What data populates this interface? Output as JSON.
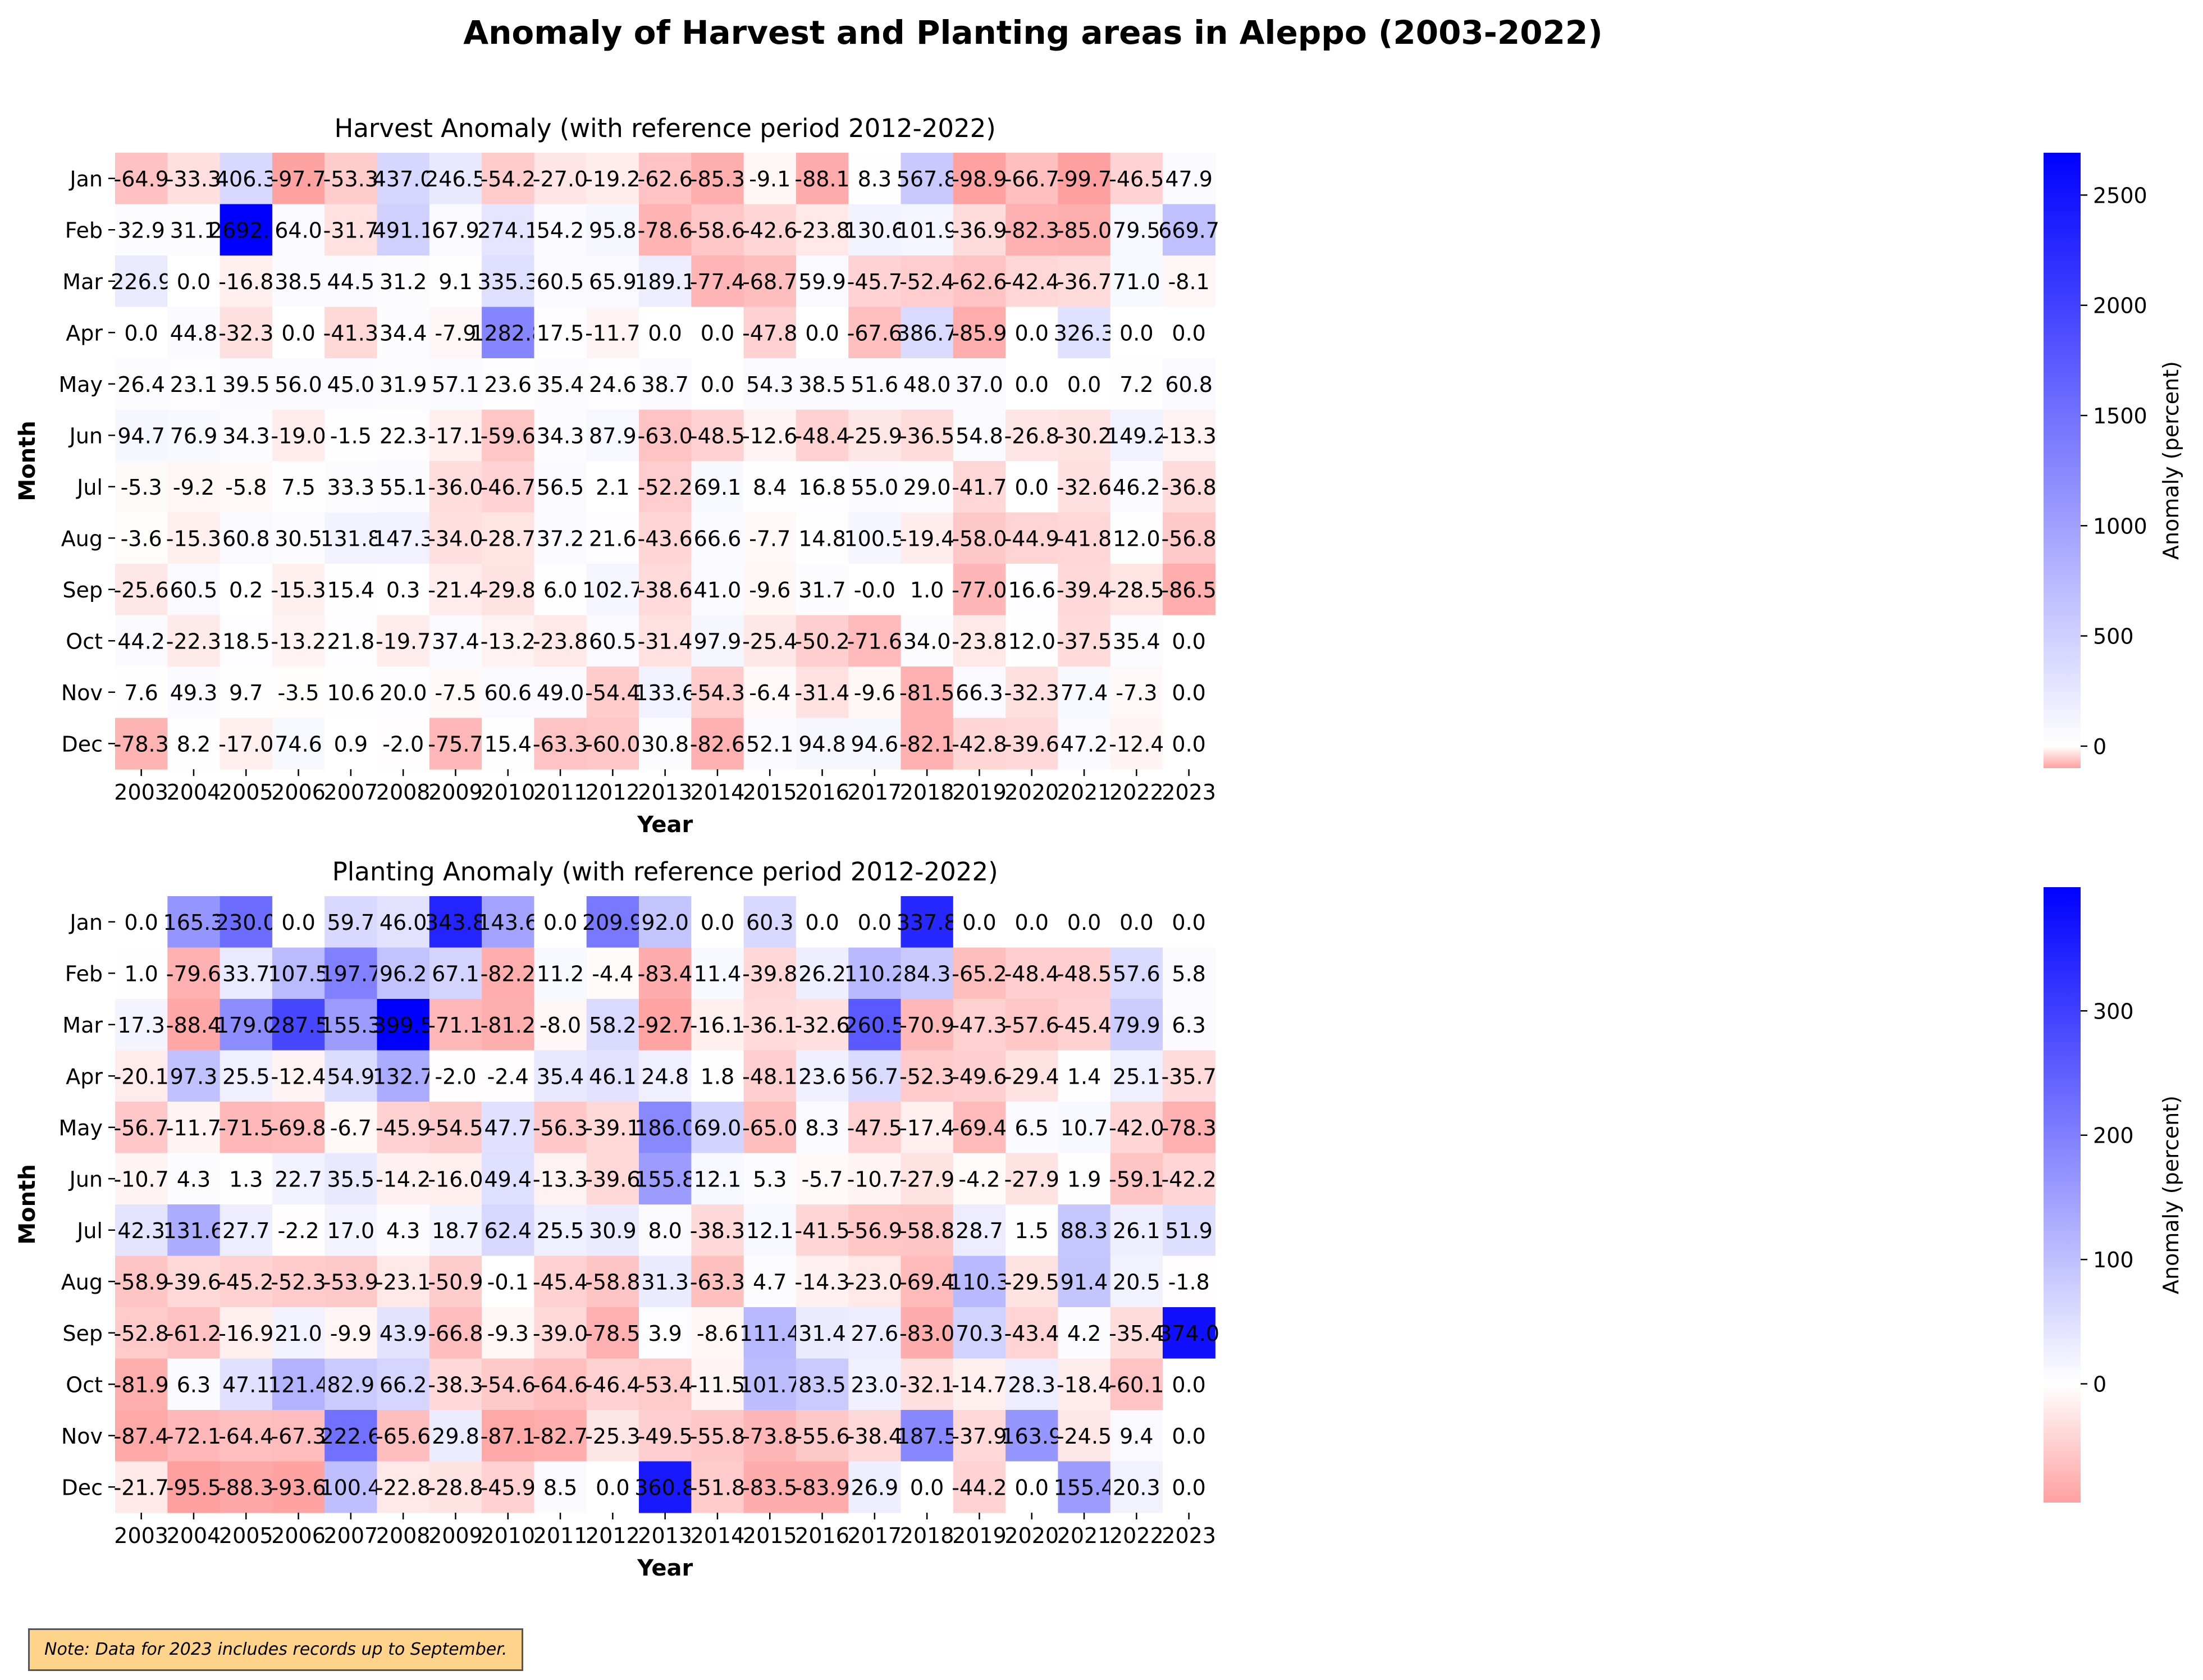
{
  "page": {
    "title": "Anomaly of Harvest and Planting areas in Aleppo (2003-2022)"
  },
  "note": "Note: Data for 2023 includes records up to September.",
  "chart_data": [
    {
      "type": "heatmap",
      "title": "Harvest Anomaly (with reference period 2012-2022)",
      "xlabel": "Year",
      "ylabel": "Month",
      "colorbar_label": "Anomaly (percent)",
      "colorbar_ticks": [
        0,
        500,
        1000,
        1500,
        2000,
        2500
      ],
      "colorbar_tick_labels": [
        "0",
        "500",
        "1000",
        "1500",
        "2000",
        "2500"
      ],
      "vmin": -99.7,
      "vmax": 2692.1,
      "colormap": [
        "#ffa0a0",
        "#ffffff",
        "#0000ff"
      ],
      "x": [
        "2003",
        "2004",
        "2005",
        "2006",
        "2007",
        "2008",
        "2009",
        "2010",
        "2011",
        "2012",
        "2013",
        "2014",
        "2015",
        "2016",
        "2017",
        "2018",
        "2019",
        "2020",
        "2021",
        "2022",
        "2023"
      ],
      "y": [
        "Jan",
        "Feb",
        "Mar",
        "Apr",
        "May",
        "Jun",
        "Jul",
        "Aug",
        "Sep",
        "Oct",
        "Nov",
        "Dec"
      ],
      "values": [
        [
          -64.9,
          -33.3,
          406.3,
          -97.7,
          -53.3,
          437.0,
          246.5,
          -54.2,
          -27.0,
          -19.2,
          -62.6,
          -85.3,
          -9.1,
          -88.1,
          8.3,
          567.8,
          -98.9,
          -66.7,
          -99.7,
          -46.5,
          47.9
        ],
        [
          32.9,
          31.1,
          2692.1,
          64.0,
          -31.7,
          491.1,
          67.9,
          274.1,
          54.2,
          95.8,
          -78.6,
          -58.6,
          -42.6,
          -23.8,
          130.6,
          101.9,
          -36.9,
          -82.3,
          -85.0,
          79.5,
          669.7
        ],
        [
          226.9,
          0.0,
          -16.8,
          38.5,
          44.5,
          31.2,
          9.1,
          335.3,
          60.5,
          65.9,
          189.1,
          -77.4,
          -68.7,
          59.9,
          -45.7,
          -52.4,
          -62.6,
          -42.4,
          -36.7,
          71.0,
          -8.1
        ],
        [
          0.0,
          44.8,
          -32.3,
          0.0,
          -41.3,
          34.4,
          -7.9,
          1282.8,
          17.5,
          -11.7,
          0.0,
          0.0,
          -47.8,
          0.0,
          -67.6,
          386.7,
          -85.9,
          0.0,
          326.3,
          0.0,
          0.0
        ],
        [
          26.4,
          23.1,
          39.5,
          56.0,
          45.0,
          31.9,
          57.1,
          23.6,
          35.4,
          24.6,
          38.7,
          0.0,
          54.3,
          38.5,
          51.6,
          48.0,
          37.0,
          0.0,
          0.0,
          7.2,
          60.8
        ],
        [
          94.7,
          76.9,
          34.3,
          -19.0,
          -1.5,
          22.3,
          -17.1,
          -59.6,
          34.3,
          87.9,
          -63.0,
          -48.5,
          -12.6,
          -48.4,
          -25.9,
          -36.5,
          54.8,
          -26.8,
          -30.2,
          149.2,
          -13.3
        ],
        [
          -5.3,
          -9.2,
          -5.8,
          7.5,
          33.3,
          55.1,
          -36.0,
          -46.7,
          56.5,
          2.1,
          -52.2,
          69.1,
          8.4,
          16.8,
          55.0,
          29.0,
          -41.7,
          0.0,
          -32.6,
          46.2,
          -36.8
        ],
        [
          -3.6,
          -15.3,
          60.8,
          30.5,
          131.8,
          147.3,
          -34.0,
          -28.7,
          37.2,
          21.6,
          -43.6,
          66.6,
          -7.7,
          14.8,
          100.5,
          -19.4,
          -58.0,
          -44.9,
          -41.8,
          12.0,
          -56.8
        ],
        [
          -25.6,
          60.5,
          0.2,
          -15.3,
          15.4,
          0.3,
          -21.4,
          -29.8,
          6.0,
          102.7,
          -38.6,
          41.0,
          -9.6,
          31.7,
          -0.0,
          1.0,
          -77.0,
          16.6,
          -39.4,
          -28.5,
          -86.5
        ],
        [
          44.2,
          -22.3,
          18.5,
          -13.2,
          21.8,
          -19.7,
          37.4,
          -13.2,
          -23.8,
          60.5,
          -31.4,
          97.9,
          -25.4,
          -50.2,
          -71.6,
          34.0,
          -23.8,
          12.0,
          -37.5,
          35.4,
          0.0
        ],
        [
          7.6,
          49.3,
          9.7,
          -3.5,
          10.6,
          20.0,
          -7.5,
          60.6,
          49.0,
          -54.4,
          133.6,
          -54.3,
          -6.4,
          -31.4,
          -9.6,
          -81.5,
          66.3,
          -32.3,
          77.4,
          -7.3,
          0.0
        ],
        [
          -78.3,
          8.2,
          -17.0,
          74.6,
          0.9,
          -2.0,
          -75.7,
          15.4,
          -63.3,
          -60.0,
          30.8,
          -82.6,
          52.1,
          94.8,
          94.6,
          -82.1,
          -42.8,
          -39.6,
          47.2,
          -12.4,
          0.0
        ]
      ]
    },
    {
      "type": "heatmap",
      "title": "Planting Anomaly (with reference period 2012-2022)",
      "xlabel": "Year",
      "ylabel": "Month",
      "colorbar_label": "Anomaly (percent)",
      "colorbar_ticks": [
        0,
        100,
        200,
        300
      ],
      "colorbar_tick_labels": [
        "0",
        "100",
        "200",
        "300"
      ],
      "vmin": -95.5,
      "vmax": 399.5,
      "colormap": [
        "#ffa0a0",
        "#ffffff",
        "#0000ff"
      ],
      "x": [
        "2003",
        "2004",
        "2005",
        "2006",
        "2007",
        "2008",
        "2009",
        "2010",
        "2011",
        "2012",
        "2013",
        "2014",
        "2015",
        "2016",
        "2017",
        "2018",
        "2019",
        "2020",
        "2021",
        "2022",
        "2023"
      ],
      "y": [
        "Jan",
        "Feb",
        "Mar",
        "Apr",
        "May",
        "Jun",
        "Jul",
        "Aug",
        "Sep",
        "Oct",
        "Nov",
        "Dec"
      ],
      "values": [
        [
          0.0,
          165.3,
          230.0,
          0.0,
          59.7,
          46.0,
          343.8,
          143.6,
          0.0,
          209.9,
          92.0,
          0.0,
          60.3,
          0.0,
          0.0,
          337.8,
          0.0,
          0.0,
          0.0,
          0.0,
          0.0
        ],
        [
          1.0,
          -79.6,
          33.7,
          107.5,
          197.7,
          96.2,
          67.1,
          -82.2,
          11.2,
          -4.4,
          -83.4,
          11.4,
          -39.8,
          26.2,
          110.2,
          84.3,
          -65.2,
          -48.4,
          -48.5,
          57.6,
          5.8
        ],
        [
          17.3,
          -88.4,
          179.0,
          287.5,
          155.3,
          399.5,
          -71.1,
          -81.2,
          -8.0,
          58.2,
          -92.7,
          -16.1,
          -36.1,
          -32.6,
          260.5,
          -70.9,
          -47.3,
          -57.6,
          -45.4,
          79.9,
          6.3
        ],
        [
          -20.1,
          97.3,
          25.5,
          -12.4,
          54.9,
          132.7,
          -2.0,
          -2.4,
          35.4,
          46.1,
          24.8,
          1.8,
          -48.1,
          23.6,
          56.7,
          -52.3,
          -49.6,
          -29.4,
          1.4,
          25.1,
          -35.7
        ],
        [
          -56.7,
          -11.7,
          -71.5,
          -69.8,
          -6.7,
          -45.9,
          -54.5,
          47.7,
          -56.3,
          -39.1,
          186.0,
          69.0,
          -65.0,
          8.3,
          -47.5,
          -17.4,
          -69.4,
          6.5,
          10.7,
          -42.0,
          -78.3
        ],
        [
          -10.7,
          4.3,
          1.3,
          22.7,
          35.5,
          -14.2,
          -16.0,
          49.4,
          -13.3,
          -39.6,
          155.8,
          12.1,
          5.3,
          -5.7,
          -10.7,
          -27.9,
          -4.2,
          -27.9,
          1.9,
          -59.1,
          -42.2
        ],
        [
          42.3,
          131.6,
          27.7,
          -2.2,
          17.0,
          4.3,
          18.7,
          62.4,
          25.5,
          30.9,
          8.0,
          -38.3,
          12.1,
          -41.5,
          -56.9,
          -58.8,
          28.7,
          1.5,
          88.3,
          26.1,
          51.9
        ],
        [
          -58.9,
          -39.6,
          -45.2,
          -52.3,
          -53.9,
          -23.1,
          -50.9,
          -0.1,
          -45.4,
          -58.8,
          31.3,
          -63.3,
          4.7,
          -14.3,
          -23.0,
          -69.4,
          110.3,
          -29.5,
          91.4,
          20.5,
          -1.8
        ],
        [
          -52.8,
          -61.2,
          -16.9,
          21.0,
          -9.9,
          43.9,
          -66.8,
          -9.3,
          -39.0,
          -78.5,
          3.9,
          -8.6,
          111.4,
          31.4,
          27.6,
          -83.0,
          70.3,
          -43.4,
          4.2,
          -35.4,
          374.0
        ],
        [
          -81.9,
          6.3,
          47.1,
          121.4,
          82.9,
          66.2,
          -38.3,
          -54.6,
          -64.6,
          -46.4,
          -53.4,
          -11.5,
          101.7,
          83.5,
          23.0,
          -32.1,
          -14.7,
          28.3,
          -18.4,
          -60.1,
          0.0
        ],
        [
          -87.4,
          -72.1,
          -64.4,
          -67.3,
          222.6,
          -65.6,
          29.8,
          -87.1,
          -82.7,
          -25.3,
          -49.5,
          -55.8,
          -73.8,
          -55.6,
          -38.4,
          187.5,
          -37.9,
          163.9,
          -24.5,
          9.4,
          0.0
        ],
        [
          -21.7,
          -95.5,
          -88.3,
          -93.6,
          100.4,
          -22.8,
          -28.8,
          -45.9,
          8.5,
          0.0,
          360.8,
          -51.8,
          -83.5,
          -83.9,
          26.9,
          0.0,
          -44.2,
          0.0,
          155.4,
          20.3,
          0.0
        ]
      ]
    }
  ]
}
